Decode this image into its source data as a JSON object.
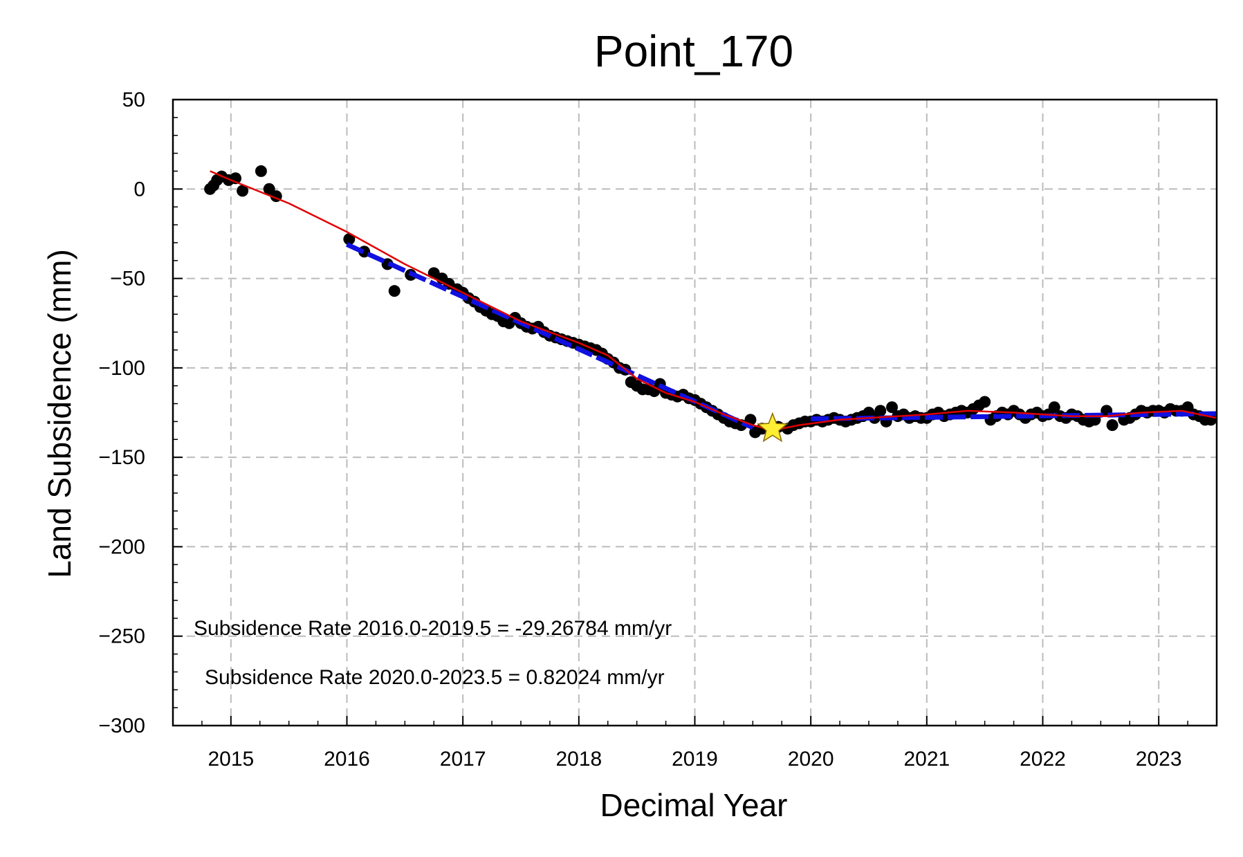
{
  "chart_data": {
    "type": "scatter",
    "title": "Point_170",
    "xlabel": "Decimal Year",
    "ylabel": "Land Subsidence (mm)",
    "xlim": [
      2014.5,
      2023.5
    ],
    "ylim": [
      -300,
      50
    ],
    "xticks": [
      2015,
      2016,
      2017,
      2018,
      2019,
      2020,
      2021,
      2022,
      2023
    ],
    "yticks": [
      50,
      0,
      -50,
      -100,
      -150,
      -200,
      -250,
      -300
    ],
    "ytick_labels": [
      "50",
      "0",
      "−50",
      "−100",
      "−150",
      "−200",
      "−250",
      "−300"
    ],
    "grid": true,
    "annotations": [
      "Subsidence Rate 2016.0-2019.5 = -29.26784 mm/yr",
      "Subsidence Rate 2020.0-2023.5 = 0.82024 mm/yr"
    ],
    "colors": {
      "points": "#000000",
      "smooth_fit": "#e00000",
      "segment_fit": "#1010e0",
      "marker_star": "#ffee33",
      "grid": "#bbbbbb"
    },
    "observations": [
      [
        2014.82,
        0
      ],
      [
        2014.85,
        2
      ],
      [
        2014.88,
        5
      ],
      [
        2014.92,
        7
      ],
      [
        2014.98,
        5
      ],
      [
        2015.04,
        6
      ],
      [
        2015.1,
        -1
      ],
      [
        2015.26,
        10
      ],
      [
        2015.33,
        0
      ],
      [
        2015.39,
        -4
      ],
      [
        2016.02,
        -28
      ],
      [
        2016.15,
        -35
      ],
      [
        2016.35,
        -42
      ],
      [
        2016.41,
        -57
      ],
      [
        2016.55,
        -48
      ],
      [
        2016.75,
        -47
      ],
      [
        2016.82,
        -50
      ],
      [
        2016.88,
        -53
      ],
      [
        2016.95,
        -56
      ],
      [
        2017.0,
        -58
      ],
      [
        2017.05,
        -61
      ],
      [
        2017.1,
        -63
      ],
      [
        2017.15,
        -66
      ],
      [
        2017.2,
        -68
      ],
      [
        2017.25,
        -70
      ],
      [
        2017.3,
        -71
      ],
      [
        2017.35,
        -74
      ],
      [
        2017.4,
        -75
      ],
      [
        2017.45,
        -72
      ],
      [
        2017.5,
        -75
      ],
      [
        2017.55,
        -77
      ],
      [
        2017.6,
        -78
      ],
      [
        2017.65,
        -77
      ],
      [
        2017.7,
        -80
      ],
      [
        2017.75,
        -82
      ],
      [
        2017.8,
        -83
      ],
      [
        2017.85,
        -84
      ],
      [
        2017.9,
        -85
      ],
      [
        2017.95,
        -86
      ],
      [
        2018.0,
        -87
      ],
      [
        2018.05,
        -88
      ],
      [
        2018.1,
        -89
      ],
      [
        2018.15,
        -90
      ],
      [
        2018.2,
        -92
      ],
      [
        2018.25,
        -95
      ],
      [
        2018.3,
        -97
      ],
      [
        2018.35,
        -100
      ],
      [
        2018.4,
        -101
      ],
      [
        2018.45,
        -108
      ],
      [
        2018.5,
        -110
      ],
      [
        2018.55,
        -112
      ],
      [
        2018.6,
        -112
      ],
      [
        2018.65,
        -113
      ],
      [
        2018.7,
        -109
      ],
      [
        2018.75,
        -114
      ],
      [
        2018.8,
        -115
      ],
      [
        2018.85,
        -116
      ],
      [
        2018.9,
        -115
      ],
      [
        2018.95,
        -117
      ],
      [
        2019.0,
        -118
      ],
      [
        2019.05,
        -120
      ],
      [
        2019.1,
        -122
      ],
      [
        2019.15,
        -124
      ],
      [
        2019.2,
        -126
      ],
      [
        2019.25,
        -128
      ],
      [
        2019.3,
        -130
      ],
      [
        2019.35,
        -131
      ],
      [
        2019.4,
        -132
      ],
      [
        2019.48,
        -129
      ],
      [
        2019.52,
        -136
      ],
      [
        2019.58,
        -134
      ],
      [
        2019.65,
        -135
      ],
      [
        2019.72,
        -133
      ],
      [
        2019.8,
        -134
      ],
      [
        2019.85,
        -132
      ],
      [
        2019.9,
        -131
      ],
      [
        2019.95,
        -130
      ],
      [
        2020.0,
        -130
      ],
      [
        2020.05,
        -129
      ],
      [
        2020.1,
        -130
      ],
      [
        2020.15,
        -129
      ],
      [
        2020.2,
        -128
      ],
      [
        2020.25,
        -129
      ],
      [
        2020.3,
        -130
      ],
      [
        2020.35,
        -129
      ],
      [
        2020.4,
        -128
      ],
      [
        2020.45,
        -127
      ],
      [
        2020.5,
        -125
      ],
      [
        2020.55,
        -128
      ],
      [
        2020.6,
        -124
      ],
      [
        2020.65,
        -130
      ],
      [
        2020.7,
        -122
      ],
      [
        2020.75,
        -127
      ],
      [
        2020.8,
        -126
      ],
      [
        2020.85,
        -128
      ],
      [
        2020.9,
        -127
      ],
      [
        2020.95,
        -128
      ],
      [
        2021.0,
        -128
      ],
      [
        2021.05,
        -126
      ],
      [
        2021.1,
        -125
      ],
      [
        2021.15,
        -127
      ],
      [
        2021.2,
        -126
      ],
      [
        2021.25,
        -125
      ],
      [
        2021.3,
        -124
      ],
      [
        2021.35,
        -125
      ],
      [
        2021.4,
        -123
      ],
      [
        2021.45,
        -121
      ],
      [
        2021.5,
        -119
      ],
      [
        2021.55,
        -129
      ],
      [
        2021.6,
        -127
      ],
      [
        2021.65,
        -125
      ],
      [
        2021.7,
        -126
      ],
      [
        2021.75,
        -124
      ],
      [
        2021.8,
        -126
      ],
      [
        2021.85,
        -128
      ],
      [
        2021.9,
        -126
      ],
      [
        2021.95,
        -125
      ],
      [
        2022.0,
        -127
      ],
      [
        2022.05,
        -126
      ],
      [
        2022.1,
        -122
      ],
      [
        2022.15,
        -127
      ],
      [
        2022.2,
        -128
      ],
      [
        2022.25,
        -126
      ],
      [
        2022.3,
        -127
      ],
      [
        2022.35,
        -129
      ],
      [
        2022.4,
        -130
      ],
      [
        2022.45,
        -129
      ],
      [
        2022.55,
        -124
      ],
      [
        2022.6,
        -132
      ],
      [
        2022.7,
        -129
      ],
      [
        2022.75,
        -128
      ],
      [
        2022.8,
        -126
      ],
      [
        2022.85,
        -124
      ],
      [
        2022.9,
        -125
      ],
      [
        2022.95,
        -124
      ],
      [
        2023.0,
        -124
      ],
      [
        2023.05,
        -125
      ],
      [
        2023.1,
        -123
      ],
      [
        2023.15,
        -124
      ],
      [
        2023.2,
        -124
      ],
      [
        2023.25,
        -122
      ],
      [
        2023.3,
        -126
      ],
      [
        2023.35,
        -127
      ],
      [
        2023.4,
        -129
      ],
      [
        2023.45,
        -129
      ]
    ],
    "smooth_fit": [
      [
        2014.82,
        10
      ],
      [
        2015.0,
        5
      ],
      [
        2015.5,
        -8
      ],
      [
        2016.0,
        -24
      ],
      [
        2016.5,
        -42
      ],
      [
        2017.0,
        -58
      ],
      [
        2017.5,
        -74
      ],
      [
        2018.0,
        -86
      ],
      [
        2018.25,
        -93
      ],
      [
        2018.5,
        -106
      ],
      [
        2018.75,
        -114
      ],
      [
        2019.0,
        -119
      ],
      [
        2019.25,
        -126
      ],
      [
        2019.5,
        -132
      ],
      [
        2019.67,
        -135
      ],
      [
        2019.9,
        -132
      ],
      [
        2020.25,
        -129
      ],
      [
        2020.75,
        -127
      ],
      [
        2021.0,
        -126
      ],
      [
        2021.35,
        -124
      ],
      [
        2021.75,
        -125
      ],
      [
        2022.25,
        -127
      ],
      [
        2022.55,
        -127
      ],
      [
        2022.85,
        -125
      ],
      [
        2023.2,
        -124
      ],
      [
        2023.5,
        -128
      ]
    ],
    "segment_fit_1": [
      [
        2016.0,
        -31.0
      ],
      [
        2019.5,
        -133.4
      ]
    ],
    "segment_fit_2": [
      [
        2020.0,
        -128.5
      ],
      [
        2023.5,
        -125.6
      ]
    ],
    "star_marker": [
      2019.67,
      -134
    ]
  }
}
